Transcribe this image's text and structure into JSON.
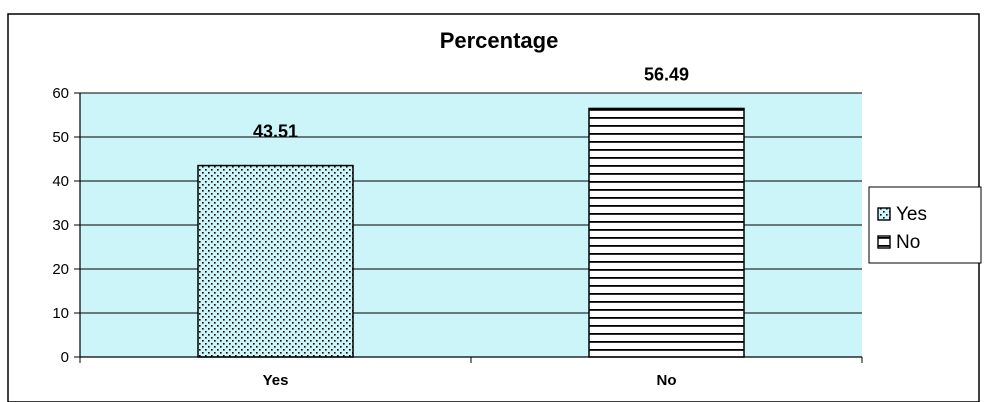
{
  "chart_data": {
    "type": "bar",
    "title": "Percentage",
    "categories": [
      "Yes",
      "No"
    ],
    "series": [
      {
        "name": "Yes",
        "values": [
          43.51,
          null
        ]
      },
      {
        "name": "No",
        "values": [
          null,
          56.49
        ]
      }
    ],
    "data_labels": [
      "43.51",
      "56.49"
    ],
    "ylim": [
      0,
      60
    ],
    "yticks": [
      0,
      10,
      20,
      30,
      40,
      50,
      60
    ],
    "grid": true,
    "legend": {
      "placement": "right",
      "entries": [
        "Yes",
        "No"
      ]
    },
    "colors": {
      "plot_background": "#ccf5fa",
      "bar_fill": "#ffffff",
      "bar_stroke": "#000000"
    }
  }
}
